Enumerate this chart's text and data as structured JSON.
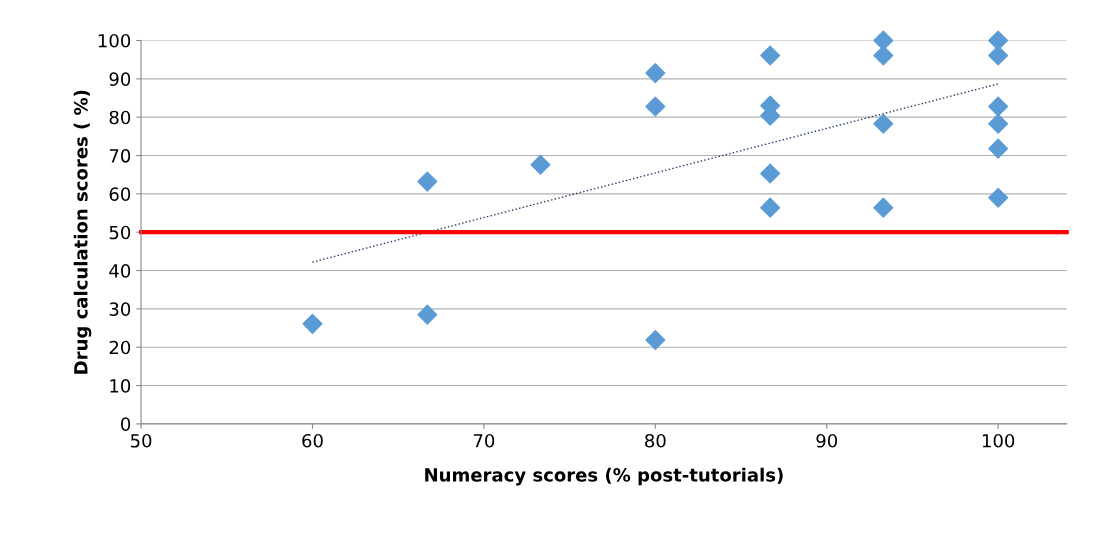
{
  "chart_data": {
    "type": "scatter",
    "xlabel": "Numeracy scores (% post-tutorials)",
    "ylabel": "Drug calculation scores ( %)",
    "series": [
      {
        "color": "#5b9bd5",
        "marker": "diamond",
        "x": [
          60,
          66.7,
          66.7,
          73.3,
          80,
          80,
          80,
          86.7,
          86.7,
          86.7,
          86.7,
          86.7,
          93.3,
          93.3,
          93.3,
          93.3,
          100,
          100,
          100,
          100,
          100,
          100
        ],
        "values": [
          26.1,
          28.5,
          63.2,
          67.6,
          91.5,
          82.8,
          21.9,
          96.1,
          83.0,
          80.4,
          65.3,
          56.4,
          100,
          96.1,
          78.3,
          56.4,
          100,
          96.1,
          82.8,
          78.3,
          71.8,
          59.0
        ]
      },
      {
        "type": "line",
        "color": "#1f3864",
        "line_style": "dotted",
        "x": [
          60,
          100
        ],
        "values": [
          42.2,
          88.7
        ]
      }
    ],
    "xlim": [
      50,
      104
    ],
    "xticks": [
      50,
      60,
      70,
      80,
      90,
      100
    ],
    "ylim": [
      0,
      100
    ],
    "yticks": [
      0,
      10,
      20,
      30,
      40,
      50,
      60,
      70,
      80,
      90,
      100
    ],
    "grid": "y",
    "ref_lines": [
      {
        "axis": "y",
        "value": 50,
        "color": "#ff0000",
        "line_style": "solid"
      }
    ]
  }
}
